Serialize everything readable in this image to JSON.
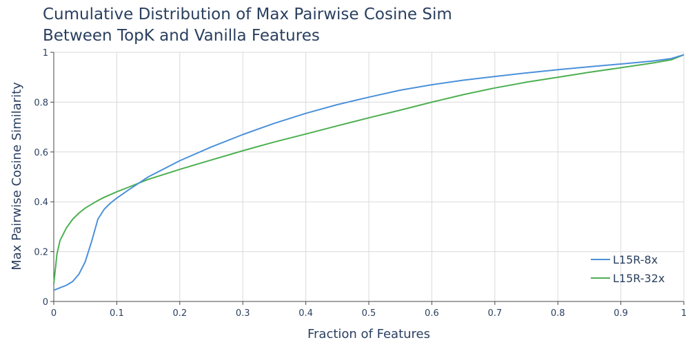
{
  "chart_data": {
    "type": "line",
    "title_lines": [
      "Cumulative Distribution of Max Pairwise Cosine Sim",
      "Between TopK and Vanilla Features"
    ],
    "xlabel": "Fraction of Features",
    "ylabel": "Max Pairwise Cosine Similarity",
    "xlim": [
      0,
      1
    ],
    "ylim": [
      0,
      1
    ],
    "x_ticks": [
      0,
      0.1,
      0.2,
      0.3,
      0.4,
      0.5,
      0.6,
      0.7,
      0.8,
      0.9,
      1
    ],
    "x_tick_labels": [
      "0",
      "0.1",
      "0.2",
      "0.3",
      "0.4",
      "0.5",
      "0.6",
      "0.7",
      "0.8",
      "0.9",
      "1"
    ],
    "y_ticks": [
      0,
      0.2,
      0.4,
      0.6,
      0.8,
      1
    ],
    "y_tick_labels": [
      "0",
      "0.2",
      "0.4",
      "0.6",
      "0.8",
      "1"
    ],
    "grid": true,
    "legend_position": "bottom-right",
    "series": [
      {
        "name": "L15R-8x",
        "color": "#4a90d9",
        "x": [
          0,
          0.01,
          0.02,
          0.03,
          0.04,
          0.05,
          0.06,
          0.07,
          0.08,
          0.09,
          0.1,
          0.12,
          0.15,
          0.2,
          0.25,
          0.3,
          0.35,
          0.4,
          0.45,
          0.5,
          0.55,
          0.6,
          0.65,
          0.7,
          0.75,
          0.8,
          0.85,
          0.9,
          0.95,
          0.98,
          1
        ],
        "y": [
          0.045,
          0.055,
          0.065,
          0.08,
          0.11,
          0.16,
          0.24,
          0.33,
          0.37,
          0.395,
          0.415,
          0.45,
          0.5,
          0.565,
          0.62,
          0.67,
          0.715,
          0.755,
          0.79,
          0.82,
          0.848,
          0.87,
          0.888,
          0.903,
          0.917,
          0.93,
          0.942,
          0.953,
          0.965,
          0.975,
          0.99
        ]
      },
      {
        "name": "L15R-32x",
        "color": "#4caf50",
        "x": [
          0,
          0.005,
          0.01,
          0.02,
          0.03,
          0.04,
          0.05,
          0.06,
          0.07,
          0.08,
          0.1,
          0.12,
          0.15,
          0.2,
          0.25,
          0.3,
          0.35,
          0.4,
          0.45,
          0.5,
          0.55,
          0.6,
          0.65,
          0.7,
          0.75,
          0.8,
          0.85,
          0.9,
          0.95,
          0.98,
          1
        ],
        "y": [
          0.07,
          0.19,
          0.245,
          0.295,
          0.33,
          0.355,
          0.375,
          0.39,
          0.405,
          0.418,
          0.44,
          0.46,
          0.49,
          0.53,
          0.568,
          0.605,
          0.64,
          0.672,
          0.705,
          0.737,
          0.768,
          0.8,
          0.83,
          0.857,
          0.88,
          0.9,
          0.92,
          0.938,
          0.957,
          0.97,
          0.99
        ]
      }
    ]
  }
}
